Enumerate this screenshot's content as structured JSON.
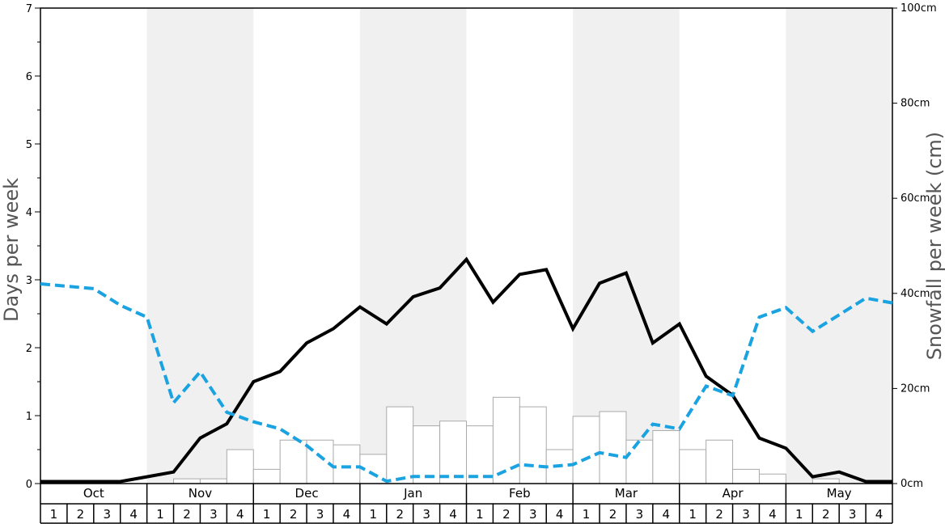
{
  "chart_data": {
    "type": "bar+line",
    "left_axis": {
      "label": "Days per week",
      "ylim": [
        0,
        7
      ],
      "ticks": [
        "0",
        "1",
        "2",
        "3",
        "4",
        "5",
        "6",
        "7"
      ]
    },
    "right_axis": {
      "label": "Snowfall per week (cm)",
      "ylim": [
        0,
        100
      ],
      "ticks": [
        "0cm",
        "20cm",
        "40cm",
        "60cm",
        "80cm",
        "100cm"
      ]
    },
    "months": [
      "Oct",
      "Nov",
      "Dec",
      "Jan",
      "Feb",
      "Mar",
      "Apr",
      "May"
    ],
    "weeks": [
      "1",
      "2",
      "3",
      "4"
    ],
    "shaded_months": [
      "Nov",
      "Jan",
      "Mar",
      "May"
    ],
    "colors": {
      "shade": "#f0f0f0",
      "bar_fill": "#ffffff",
      "bar_stroke": "#aaaaaa",
      "days_line": "#000000",
      "temp_line": "#1aa3e0"
    },
    "bars_days": [
      0,
      0,
      0,
      0,
      0,
      0.07,
      0.07,
      0.5,
      0.21,
      0.64,
      0.64,
      0.57,
      0.43,
      1.13,
      0.85,
      0.92,
      0.85,
      1.27,
      1.13,
      0.5,
      0.99,
      1.06,
      0.64,
      0.78,
      0.5,
      0.64,
      0.21,
      0.14,
      0,
      0.07,
      0,
      0
    ],
    "line_solid_days": [
      0.03,
      0.03,
      0.03,
      0.03,
      0.1,
      0.17,
      0.67,
      0.88,
      1.5,
      1.65,
      2.07,
      2.28,
      2.6,
      2.35,
      2.75,
      2.88,
      3.3,
      2.67,
      3.08,
      3.15,
      2.28,
      2.95,
      3.1,
      2.07,
      2.35,
      1.58,
      1.3,
      0.67,
      0.52,
      0.1,
      0.17,
      0.03,
      0.03
    ],
    "line_dashed_cm": [
      42,
      41.5,
      41,
      37.5,
      35,
      17,
      23.5,
      15,
      13,
      11.5,
      8,
      3.5,
      3.5,
      0.5,
      1.5,
      1.5,
      1.5,
      1.5,
      4,
      3.5,
      4,
      6.5,
      5.5,
      12.5,
      11.5,
      20.5,
      18.5,
      35,
      37,
      32,
      35.5,
      39,
      38
    ]
  }
}
